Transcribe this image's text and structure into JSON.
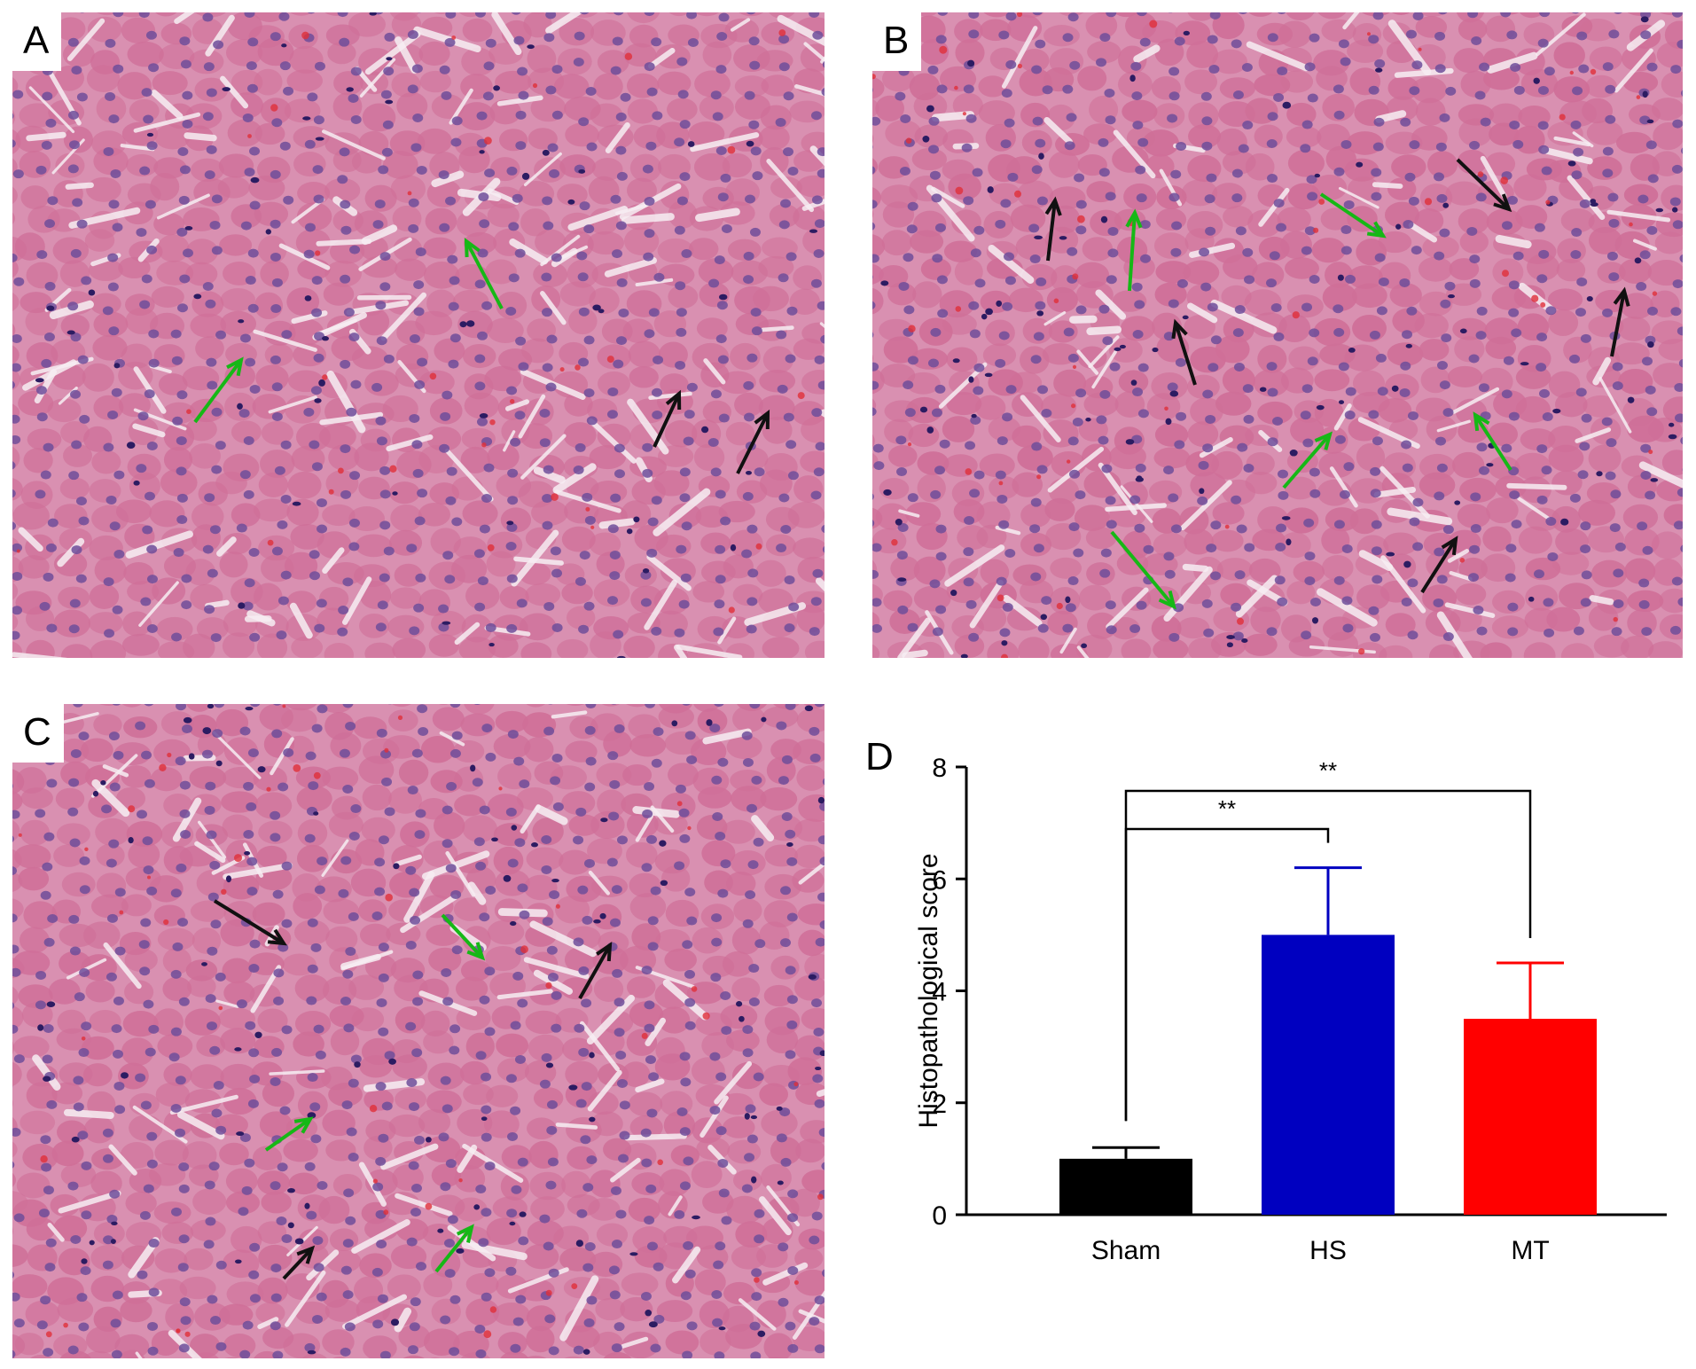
{
  "panels": {
    "a": {
      "letter": "A"
    },
    "b": {
      "letter": "B"
    },
    "c": {
      "letter": "C"
    },
    "d": {
      "letter": "D"
    }
  },
  "micrograph": {
    "stain_background": "#d990b1",
    "cytoplasm": "#cf6f98",
    "nucleus": "#6f4e9a",
    "dark_nucleus": "#2c1c62",
    "sinusoid": "#f7eef3",
    "rbc": "#e0303a",
    "arrow_green": "#16b816",
    "arrow_black": "#111111"
  },
  "chart_data": {
    "type": "bar",
    "categories": [
      "Sham",
      "HS",
      "MT"
    ],
    "values": [
      1.0,
      5.0,
      3.5
    ],
    "errors": [
      0.2,
      1.2,
      1.0
    ],
    "colors": [
      "#000000",
      "#0000c0",
      "#ff0000"
    ],
    "ylabel": "Histopathological score",
    "xlabel": "",
    "ylim": [
      0,
      8
    ],
    "yticks": [
      0,
      2,
      4,
      6,
      8
    ],
    "grid": false,
    "significance": [
      {
        "from": "Sham",
        "to": "HS",
        "label": "**"
      },
      {
        "from": "Sham",
        "to": "MT",
        "label": "**"
      }
    ]
  }
}
